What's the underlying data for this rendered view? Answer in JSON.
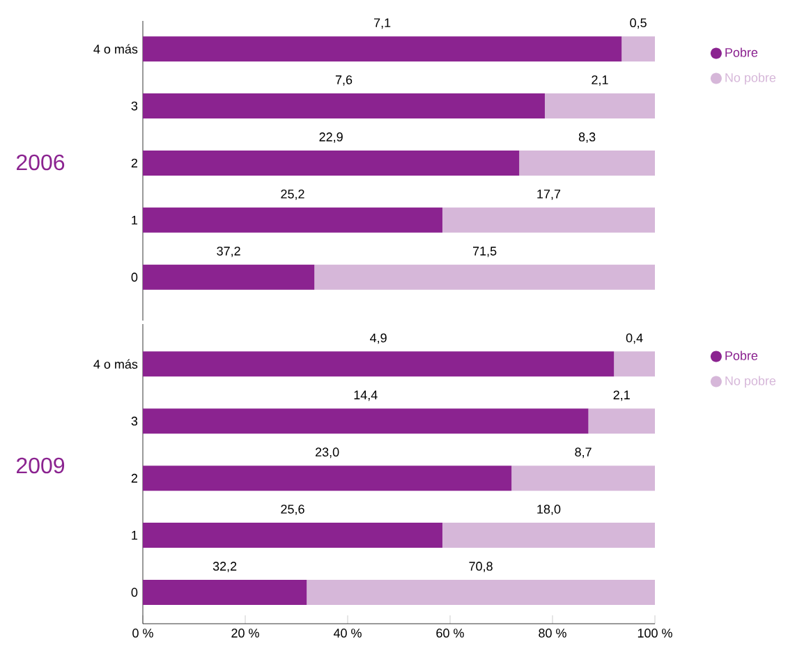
{
  "chart_data": [
    {
      "type": "bar",
      "title": "2006",
      "orientation": "horizontal",
      "stacked": true,
      "categories": [
        "4 o más",
        "3",
        "2",
        "1",
        "0"
      ],
      "series": [
        {
          "name": "Pobre",
          "color": "#8b2390",
          "values": [
            93.5,
            78.5,
            73.5,
            58.5,
            33.5
          ]
        },
        {
          "name": "No pobre",
          "color": "#d6b7d9",
          "values": [
            6.5,
            21.5,
            26.5,
            41.5,
            66.5
          ]
        }
      ],
      "annotations": [
        "7,1",
        "0,5",
        "7,6",
        "2,1",
        "22,9",
        "8,3",
        "25,2",
        "17,7",
        "37,2",
        "71,5"
      ],
      "xlim": [
        0,
        100
      ],
      "tick_labels": "y",
      "legend": "top right"
    },
    {
      "type": "bar",
      "title": "2009",
      "orientation": "horizontal",
      "stacked": true,
      "categories": [
        "4 o más",
        "3",
        "2",
        "1",
        "0"
      ],
      "series": [
        {
          "name": "Pobre",
          "color": "#8b2390",
          "values": [
            92,
            87,
            72,
            58.5,
            32
          ]
        },
        {
          "name": "No pobre",
          "color": "#d6b7d9",
          "values": [
            8,
            13,
            28,
            41.5,
            68
          ]
        }
      ],
      "annotations": [
        "4,9",
        "0,4",
        "14,4",
        "2,1",
        "23,0",
        "8,7",
        "25,6",
        "18,0",
        "32,2",
        "70,8"
      ],
      "xlim": [
        0,
        100
      ],
      "xticks": [
        {
          "value": 0,
          "label": "0 %"
        },
        {
          "value": 20,
          "label": "20 %"
        },
        {
          "value": 40,
          "label": "40 %"
        },
        {
          "value": 60,
          "label": "60 %"
        },
        {
          "value": 80,
          "label": "80 %"
        },
        {
          "value": 100,
          "label": "100 %"
        }
      ],
      "legend": "top right"
    }
  ]
}
